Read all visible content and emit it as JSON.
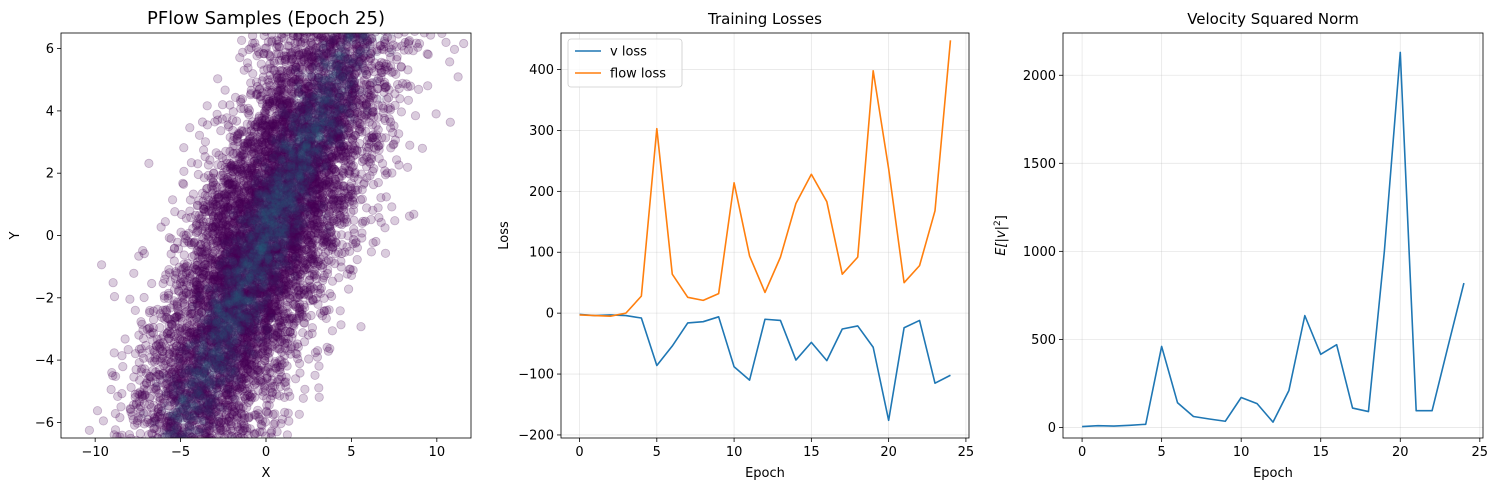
{
  "figure": {
    "background": "#ffffff"
  },
  "chart_data": [
    {
      "type": "scatter",
      "title": "PFlow Samples (Epoch 25)",
      "xlabel": "X",
      "ylabel": "Y",
      "xlim": [
        -12,
        12
      ],
      "ylim": [
        -6.5,
        6.5
      ],
      "xticks": [
        -10,
        -5,
        0,
        5,
        10
      ],
      "yticks": [
        -6,
        -4,
        -2,
        0,
        2,
        4,
        6
      ],
      "grid": false,
      "marker_color": "#440154",
      "dense_color": "#2a788e",
      "marker_alpha": 0.2,
      "point_count": 9000,
      "distribution": {
        "mean": [
          0,
          0
        ],
        "orientation": "positive diagonal band",
        "slope_y_per_x": 1.25,
        "spread_along_axis_sd": 5.8,
        "spread_across_axis_sd": 1.8
      }
    },
    {
      "type": "line",
      "title": "Training Losses",
      "xlabel": "Epoch",
      "ylabel": "Loss",
      "xlim": [
        -1.2,
        25.2
      ],
      "ylim": [
        -205,
        460
      ],
      "xticks": [
        0,
        5,
        10,
        15,
        20,
        25
      ],
      "yticks": [
        -200,
        -100,
        0,
        100,
        200,
        300,
        400
      ],
      "grid": true,
      "legend": "top-left",
      "x": [
        0,
        1,
        2,
        3,
        4,
        5,
        6,
        7,
        8,
        9,
        10,
        11,
        12,
        13,
        14,
        15,
        16,
        17,
        18,
        19,
        20,
        21,
        22,
        23,
        24
      ],
      "series": [
        {
          "name": "v loss",
          "color": "#1f77b4",
          "values": [
            -2,
            -4,
            -3,
            -4,
            -8,
            -86,
            -54,
            -16,
            -14,
            -6,
            -88,
            -110,
            -10,
            -12,
            -77,
            -48,
            -78,
            -26,
            -21,
            -56,
            -176,
            -24,
            -12,
            -115,
            -102
          ]
        },
        {
          "name": "flow loss",
          "color": "#ff7f0e",
          "values": [
            -3,
            -4,
            -5,
            0,
            28,
            303,
            64,
            26,
            21,
            32,
            214,
            94,
            34,
            92,
            180,
            228,
            183,
            64,
            92,
            398,
            237,
            50,
            78,
            168,
            448
          ]
        }
      ]
    },
    {
      "type": "line",
      "title": "Velocity Squared Norm",
      "xlabel": "Epoch",
      "ylabel": "E[|v|²]",
      "ylabel_parts": {
        "base": "E[|v|",
        "sup": "2",
        "end": "]"
      },
      "xlim": [
        -1.2,
        25.2
      ],
      "ylim": [
        -60,
        2240
      ],
      "xticks": [
        0,
        5,
        10,
        15,
        20,
        25
      ],
      "yticks": [
        0,
        500,
        1000,
        1500,
        2000
      ],
      "grid": true,
      "x": [
        0,
        1,
        2,
        3,
        4,
        5,
        6,
        7,
        8,
        9,
        10,
        11,
        12,
        13,
        14,
        15,
        16,
        17,
        18,
        19,
        20,
        21,
        22,
        23,
        24
      ],
      "series": [
        {
          "color": "#1f77b4",
          "values": [
            5,
            10,
            8,
            12,
            18,
            460,
            140,
            62,
            48,
            35,
            170,
            135,
            30,
            210,
            635,
            415,
            470,
            110,
            90,
            1000,
            2130,
            95,
            95,
            460,
            820
          ]
        }
      ]
    }
  ]
}
